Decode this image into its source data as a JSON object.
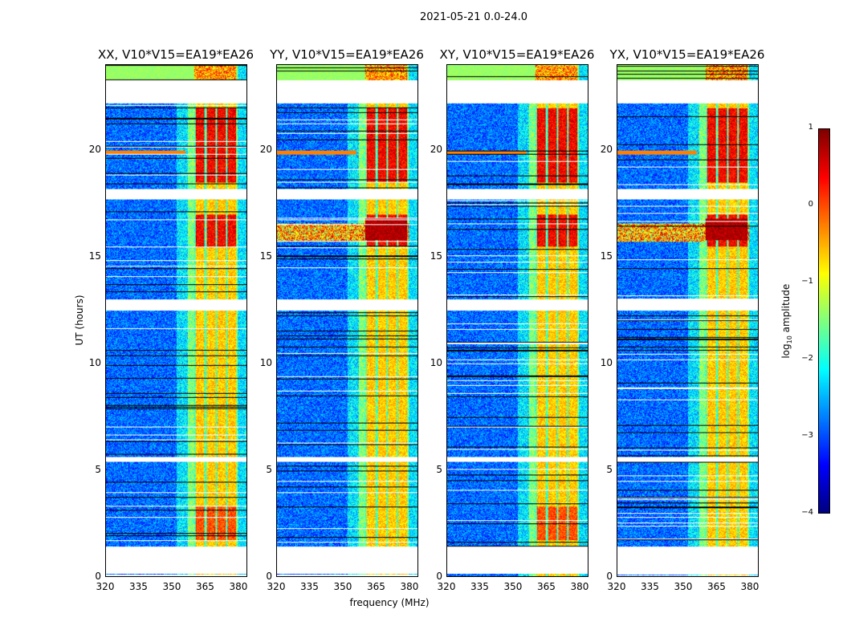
{
  "chart_data": {
    "type": "heatmap",
    "title": "2021-05-21 0.0-24.0",
    "xlabel": "frequency (MHz)",
    "ylabel": "UT (hours)",
    "xlim": [
      320,
      384
    ],
    "ylim": [
      0,
      24
    ],
    "xticks": [
      "320",
      "335",
      "350",
      "365",
      "380"
    ],
    "xtick_values": [
      320,
      335,
      350,
      365,
      380
    ],
    "yticks": [
      "0",
      "5",
      "10",
      "15",
      "20"
    ],
    "ytick_values": [
      0,
      5,
      10,
      15,
      20
    ],
    "panels": [
      {
        "title": "XX, V10*V15=EA19*EA26"
      },
      {
        "title": "YY, V10*V15=EA19*EA26"
      },
      {
        "title": "XY, V10*V15=EA19*EA26"
      },
      {
        "title": "YX, V10*V15=EA19*EA26"
      }
    ],
    "rfi_band_mhz": [
      360,
      379
    ],
    "data_gaps_hours": [
      [
        22.2,
        23.3
      ],
      [
        17.7,
        18.2
      ],
      [
        12.5,
        13.0
      ],
      [
        5.4,
        5.6
      ],
      [
        0.15,
        1.4
      ]
    ],
    "colorbar": {
      "label": "log10 amplitude",
      "label_main": "log",
      "label_sub": "10",
      "label_rest": " amplitude",
      "range": [
        -4,
        1
      ],
      "ticks": [
        "1",
        "0",
        "−1",
        "−2",
        "−3",
        "−4"
      ],
      "tick_values": [
        1,
        0,
        -1,
        -2,
        -3,
        -4
      ],
      "colormap": "jet"
    }
  }
}
